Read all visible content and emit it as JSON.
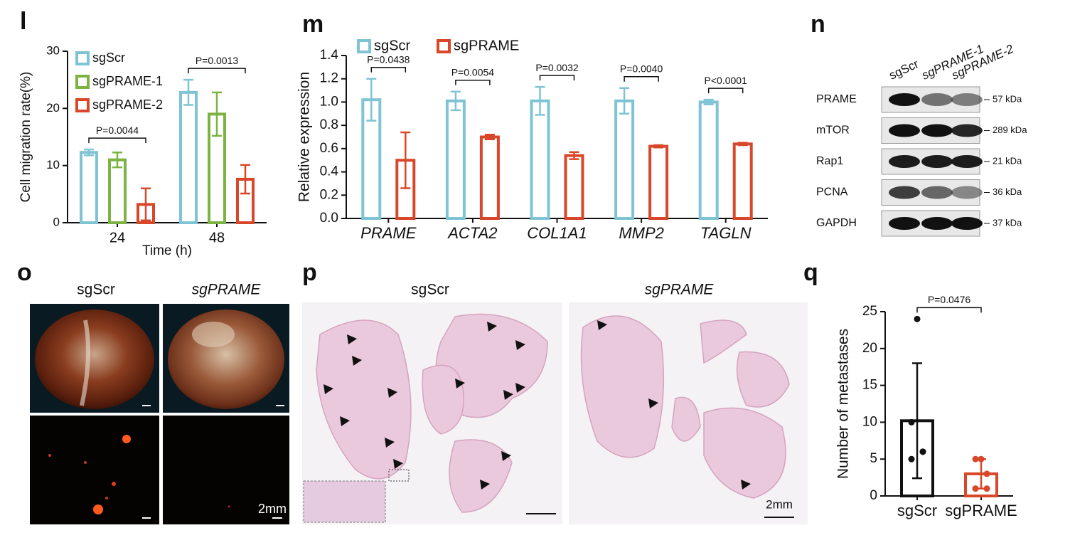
{
  "chart_data": [
    {
      "type": "bar",
      "panel": "l",
      "categories": [
        "24",
        "48"
      ],
      "series": [
        {
          "name": "sgScr",
          "color": "#7ec4d4",
          "values": [
            12.3,
            22.8
          ],
          "errors": [
            0.5,
            2.2
          ]
        },
        {
          "name": "sgPRAME-1",
          "color": "#7cb342",
          "values": [
            11,
            19
          ],
          "errors": [
            1.3,
            3.8
          ]
        },
        {
          "name": "sgPRAME-2",
          "color": "#d9472b",
          "values": [
            3.2,
            7.6
          ],
          "errors": [
            2.8,
            2.5
          ]
        }
      ],
      "ylim": [
        0,
        30
      ],
      "yticks": [
        0,
        10,
        20,
        30
      ],
      "xlabel": "Time (h)",
      "ylabel": "Cell migration rate(%)",
      "annotations": [
        "P=0.0044",
        "P=0.0013"
      ]
    },
    {
      "type": "bar",
      "panel": "m",
      "categories": [
        "PRAME",
        "ACTA2",
        "COL1A1",
        "MMP2",
        "TAGLN"
      ],
      "series": [
        {
          "name": "sgScr",
          "color": "#7ec4d4",
          "values": [
            1.02,
            1.01,
            1.01,
            1.01,
            1.0
          ],
          "errors": [
            0.18,
            0.08,
            0.12,
            0.11,
            0.02
          ]
        },
        {
          "name": "sgPRAME",
          "color": "#d9472b",
          "values": [
            0.5,
            0.7,
            0.54,
            0.62,
            0.64
          ],
          "errors": [
            0.24,
            0.02,
            0.03,
            0.01,
            0.01
          ]
        }
      ],
      "ylim": [
        0,
        1.4
      ],
      "yticks": [
        {
          "value": 0,
          "label": "0.0"
        },
        0.2,
        0.4,
        0.6,
        0.8,
        {
          "value": 1,
          "label": "1.0"
        },
        1.2,
        1.4
      ],
      "ylabel": "Relative expression",
      "annotations": [
        "P=0.0438",
        "P=0.0054",
        "P=0.0032",
        "P=0.0040",
        "P<0.0001"
      ]
    },
    {
      "type": "bar",
      "panel": "q",
      "categories": [
        "sgScr",
        "sgPRAME"
      ],
      "series": [
        {
          "colors": [
            "#111111",
            "#d9472b"
          ],
          "values": [
            10.2,
            3.0
          ],
          "errors": [
            7.8,
            2.0
          ],
          "points": [
            [
              24,
              10,
              6,
              5,
              6
            ],
            [
              5,
              5,
              3,
              1,
              1
            ]
          ]
        }
      ],
      "ylim": [
        0,
        25
      ],
      "yticks": [
        0,
        5,
        10,
        15,
        20,
        25
      ],
      "ylabel": "Number  of metastases",
      "annotations": [
        "P=0.0476"
      ]
    }
  ],
  "blot": {
    "panel": "n",
    "lanes": [
      "sgScr",
      "sgPRAME-1",
      "sgPRAME-2"
    ],
    "rows": [
      {
        "protein": "PRAME",
        "size": "57 kDa"
      },
      {
        "protein": "mTOR",
        "size": "289 kDa"
      },
      {
        "protein": "Rap1",
        "size": "21 kDa"
      },
      {
        "protein": "PCNA",
        "size": "36 kDa"
      },
      {
        "protein": "GAPDH",
        "size": "37 kDa"
      }
    ]
  },
  "images": [
    {
      "panel": "o",
      "labels": [
        "sgScr",
        "sgPRAME"
      ],
      "scale": "2mm"
    },
    {
      "panel": "p",
      "labels": [
        "sgScr",
        "sgPRAME"
      ],
      "scale": "2mm"
    }
  ]
}
